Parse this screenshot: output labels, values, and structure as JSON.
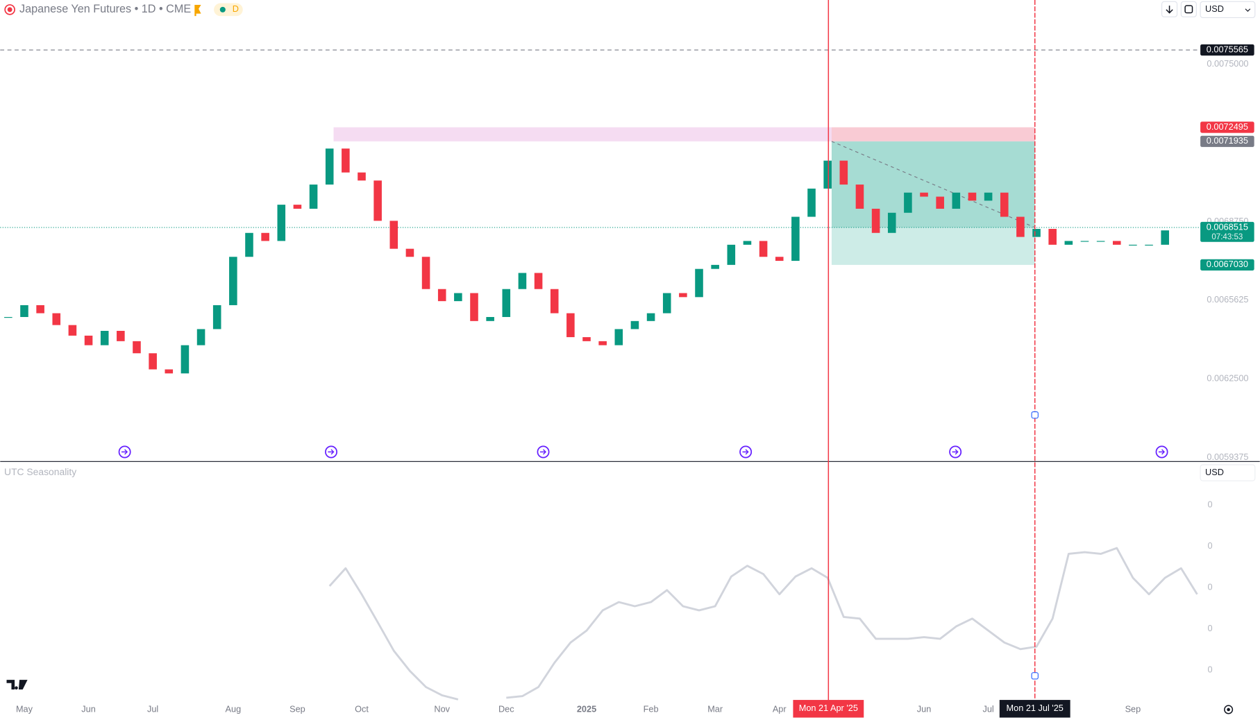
{
  "header": {
    "title": "Japanese Yen Futures • 1D • CME",
    "badge": "D",
    "currency": "USD"
  },
  "chart_data": [
    {
      "type": "candlestick",
      "categories": [
        null,
        "May",
        null,
        null,
        null,
        "Jun",
        null,
        null,
        null,
        "Jul",
        null,
        null,
        null,
        null,
        "Aug",
        null,
        null,
        null,
        "Sep",
        null,
        null,
        null,
        "Oct",
        null,
        null,
        null,
        null,
        "Nov",
        null,
        null,
        null,
        "Dec",
        null,
        null,
        null,
        null,
        "2025",
        null,
        null,
        null,
        "Feb",
        null,
        null,
        null,
        "Mar",
        null,
        null,
        null,
        "Apr",
        null,
        null,
        null,
        null,
        null,
        null,
        null,
        null,
        "Jun",
        null,
        null,
        null,
        "Jul",
        null,
        null,
        null,
        null,
        null,
        null,
        null,
        null,
        "Sep",
        null,
        null,
        null,
        null
      ],
      "values": [
        0.006496,
        0.006543,
        0.006511,
        0.006464,
        0.006422,
        0.006384,
        0.006441,
        0.0064,
        0.006352,
        0.006288,
        0.006272,
        0.006384,
        0.006448,
        0.006543,
        0.006735,
        0.00683,
        0.006798,
        0.006942,
        0.006926,
        0.007022,
        0.007165,
        0.00707,
        0.007038,
        0.006878,
        0.006767,
        0.006735,
        0.006607,
        0.006559,
        0.006591,
        0.00648,
        0.006496,
        0.006607,
        0.006671,
        0.006607,
        0.006511,
        0.006416,
        0.0064,
        0.006384,
        0.006448,
        0.00648,
        0.006511,
        0.006591,
        0.006575,
        0.006687,
        0.006703,
        0.006783,
        0.006798,
        0.006735,
        0.006719,
        0.006894,
        0.007006,
        0.007117,
        0.007022,
        0.006926,
        0.00683,
        0.00691,
        0.00699,
        0.006974,
        0.006926,
        0.00699,
        0.006958,
        0.00699,
        0.006894,
        0.006814,
        0.006846,
        0.006783,
        0.006798,
        0.006798,
        0.006798,
        0.006783,
        0.006783,
        0.006783,
        0.00684,
        null,
        null
      ],
      "color_up": "#089981",
      "color_down": "#f23645",
      "ylim": [
        0.005922,
        0.007755
      ],
      "yticks": [
        {
          "value": 0.0075,
          "label": "0.0075000"
        },
        {
          "value": 0.006875,
          "label": "0.0068750"
        },
        {
          "value": 0.0065625,
          "label": "0.0065625"
        },
        {
          "value": 0.00625,
          "label": "0.0062500"
        },
        {
          "value": 0.0059375,
          "label": "0.0059375"
        }
      ],
      "grid": false,
      "price_labels": [
        {
          "value": 0.0075565,
          "color": "#131722"
        },
        {
          "value": 0.0072495,
          "color": "#f23645"
        },
        {
          "value": 0.0071935,
          "color": "#787b86"
        },
        {
          "value": 0.0068515,
          "color": "#089981",
          "countdown": "07:43:53"
        },
        {
          "value": 0.006703,
          "label": "0.0067030",
          "color": "#089981"
        }
      ],
      "markers": [
        {
          "label": "Mon 21 Apr '25",
          "color": "#f23645"
        },
        {
          "label": "Mon 21 Jul '25",
          "color": "#131722"
        }
      ]
    },
    {
      "type": "line",
      "title": "UTC Seasonality",
      "currency": "USD",
      "color": "#d1d4dc",
      "values": [
        null,
        null,
        null,
        null,
        null,
        null,
        null,
        null,
        null,
        null,
        null,
        null,
        null,
        null,
        null,
        null,
        null,
        null,
        null,
        null,
        0.204,
        0.247,
        0.184,
        0.116,
        0.047,
        -0.002,
        -0.041,
        -0.061,
        -0.071,
        null,
        null,
        -0.067,
        -0.063,
        -0.041,
        0.018,
        0.067,
        0.096,
        0.145,
        0.165,
        0.155,
        0.165,
        0.194,
        0.155,
        0.145,
        0.155,
        0.227,
        0.253,
        0.233,
        0.184,
        0.227,
        0.247,
        0.224,
        0.129,
        0.125,
        0.076,
        0.076,
        0.076,
        0.08,
        0.076,
        0.106,
        0.125,
        0.096,
        0.067,
        0.051,
        0.057,
        0.125,
        0.282,
        0.286,
        0.282,
        0.296,
        0.224,
        0.184,
        0.224,
        0.247,
        0.184
      ],
      "ylim": [
        -0.08,
        0.5
      ],
      "yticks": [
        {
          "value": 0.4,
          "label": "0"
        },
        {
          "value": 0.3,
          "label": "0"
        },
        {
          "value": 0.2,
          "label": "0"
        },
        {
          "value": 0.1,
          "label": "0"
        },
        0
      ]
    }
  ]
}
